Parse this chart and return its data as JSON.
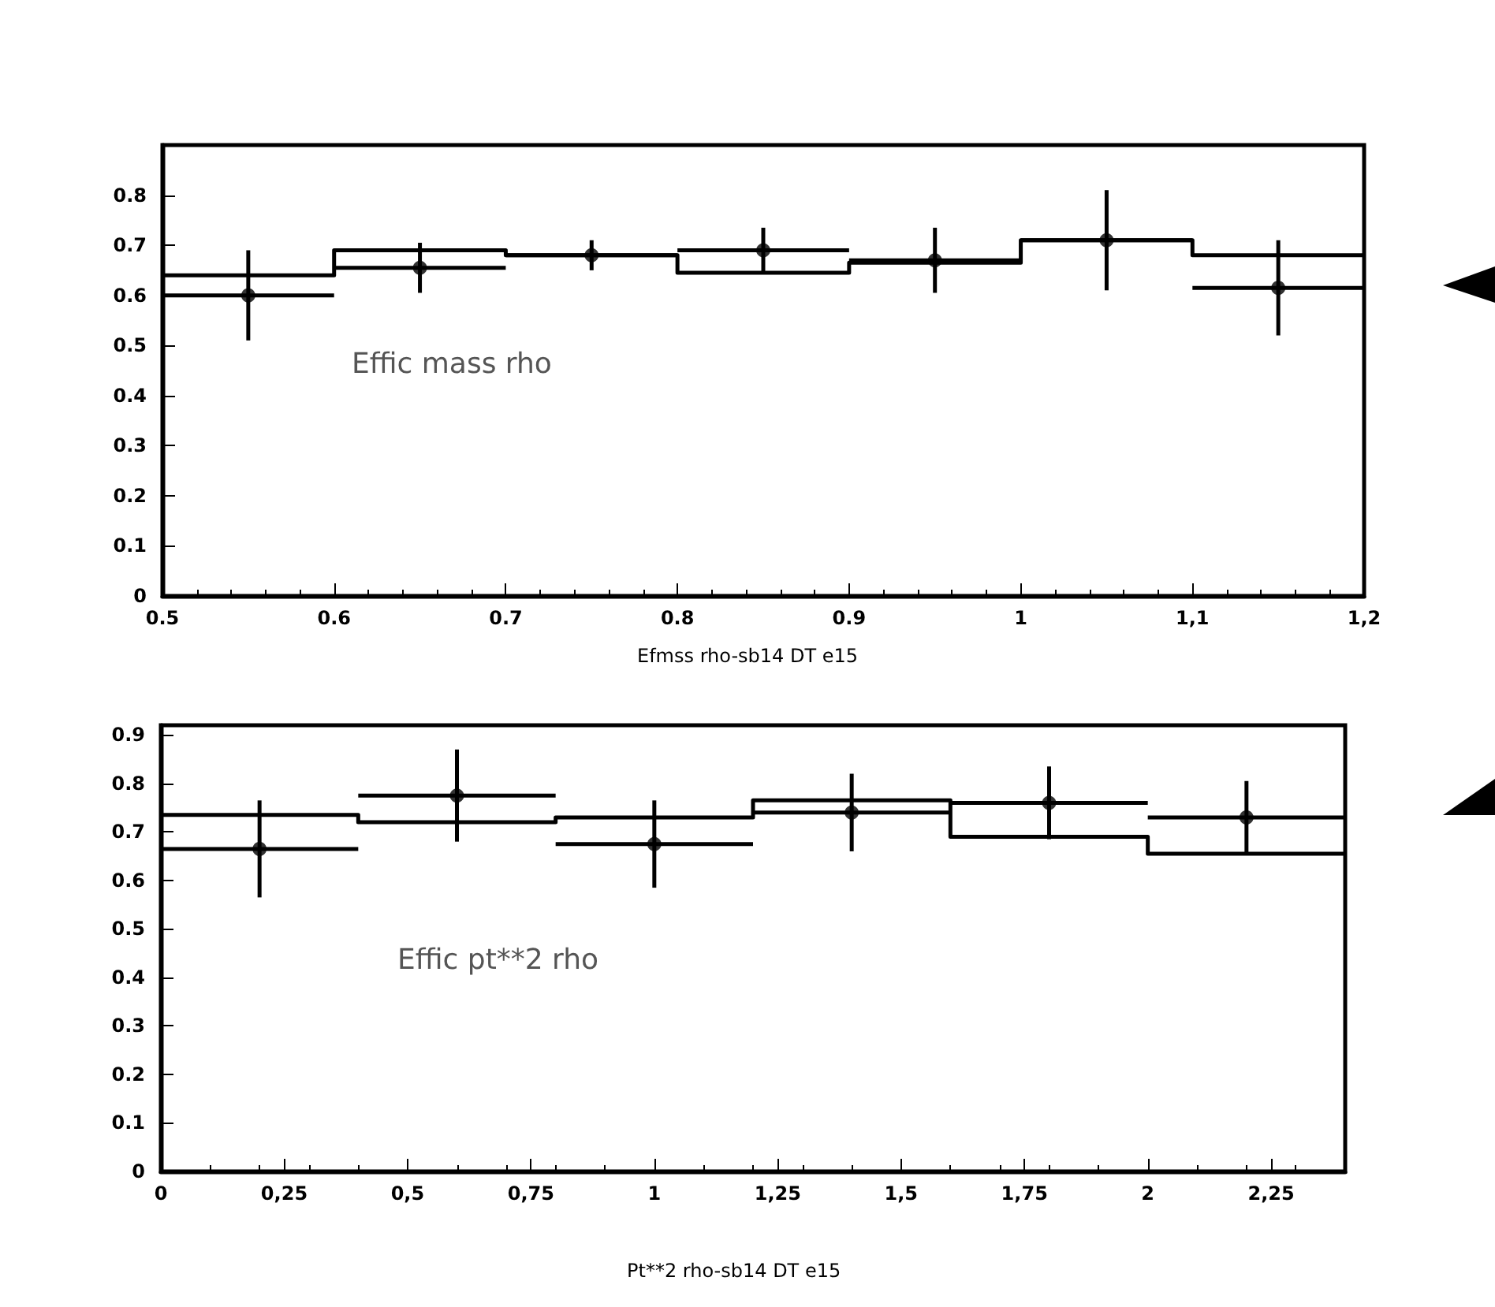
{
  "chart_data": [
    {
      "type": "histogram",
      "xlabel": "Efmss rho-sb14 DT e15",
      "annotations": [
        "Effic mass rho"
      ],
      "xlim": [
        0.5,
        1.2
      ],
      "ylim": [
        0,
        0.9
      ],
      "xticks": [
        {
          "value": 0.5,
          "label": "0.5"
        },
        {
          "value": 0.6,
          "label": "0.6"
        },
        {
          "value": 0.7,
          "label": "0.7"
        },
        {
          "value": 0.8,
          "label": "0.8"
        },
        {
          "value": 0.9,
          "label": "0.9"
        },
        1,
        {
          "value": 1.1,
          "label": "1,1"
        },
        {
          "value": 1.2,
          "label": "1,2"
        }
      ],
      "yticks": [
        0,
        0.1,
        0.2,
        0.3,
        0.4,
        0.5,
        0.6,
        0.7,
        0.8
      ],
      "grid": false,
      "marker": "circle",
      "series": [
        {
          "color": "#000000",
          "bins": [
            0.5,
            0.6,
            0.7,
            0.8,
            0.9,
            1.0,
            1.1,
            1.2
          ],
          "values": [
            0.64,
            0.69,
            0.68,
            0.645,
            0.665,
            0.71,
            0.68
          ]
        },
        {
          "type": "scatter",
          "color": "#000000",
          "x": [
            0.55,
            0.65,
            0.75,
            0.85,
            0.95,
            1.05,
            1.15
          ],
          "values": [
            0.6,
            0.655,
            0.68,
            0.69,
            0.67,
            0.71,
            0.615
          ],
          "errors": [
            0.09,
            0.05,
            0.03,
            0.045,
            0.065,
            0.1,
            0.095
          ],
          "xerrors": [
            0.05,
            0.05,
            0.05,
            0.05,
            0.05,
            0.05,
            0.05
          ]
        }
      ]
    },
    {
      "type": "histogram",
      "xlabel": "Pt**2 rho-sb14 DT e15",
      "annotations": [
        "Effic pt**2 rho"
      ],
      "xlim": [
        0,
        2.4
      ],
      "ylim": [
        0,
        0.92
      ],
      "xticks": [
        0,
        {
          "value": 0.25,
          "label": "0,25"
        },
        {
          "value": 0.5,
          "label": "0,5"
        },
        {
          "value": 0.75,
          "label": "0,75"
        },
        1,
        {
          "value": 1.25,
          "label": "1,25"
        },
        {
          "value": 1.5,
          "label": "1,5"
        },
        {
          "value": 1.75,
          "label": "1,75"
        },
        2,
        {
          "value": 2.25,
          "label": "2,25"
        }
      ],
      "yticks": [
        0,
        0.1,
        0.2,
        0.3,
        0.4,
        0.5,
        0.6,
        0.7,
        0.8,
        0.9
      ],
      "grid": false,
      "marker": "circle",
      "series": [
        {
          "color": "#000000",
          "bins": [
            0,
            0.4,
            0.8,
            1.2,
            1.6,
            2.0,
            2.4
          ],
          "values": [
            0.735,
            0.72,
            0.73,
            0.765,
            0.69,
            0.655
          ]
        },
        {
          "type": "scatter",
          "color": "#000000",
          "x": [
            0.2,
            0.6,
            1.0,
            1.4,
            1.8,
            2.2
          ],
          "values": [
            0.665,
            0.775,
            0.675,
            0.74,
            0.76,
            0.73
          ],
          "errors": [
            0.1,
            0.095,
            0.09,
            0.08,
            0.075,
            0.075
          ],
          "xerrors": [
            0.2,
            0.2,
            0.2,
            0.2,
            0.2,
            0.2
          ]
        }
      ]
    }
  ]
}
